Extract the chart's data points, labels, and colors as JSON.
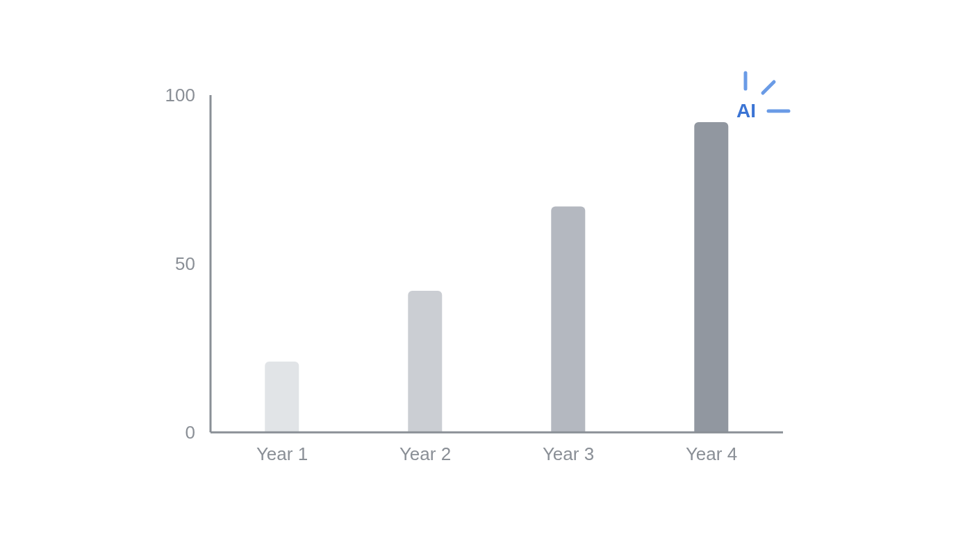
{
  "chart_data": {
    "type": "bar",
    "categories": [
      "Year 1",
      "Year 2",
      "Year 3",
      "Year 4"
    ],
    "values": [
      21,
      42,
      67,
      92
    ],
    "colors": [
      "#e1e4e7",
      "#cbced3",
      "#b4b8c0",
      "#9197a0"
    ],
    "ylim": [
      0,
      100
    ],
    "yticks": [
      0,
      50,
      100
    ],
    "annotations": [
      "AI"
    ]
  }
}
